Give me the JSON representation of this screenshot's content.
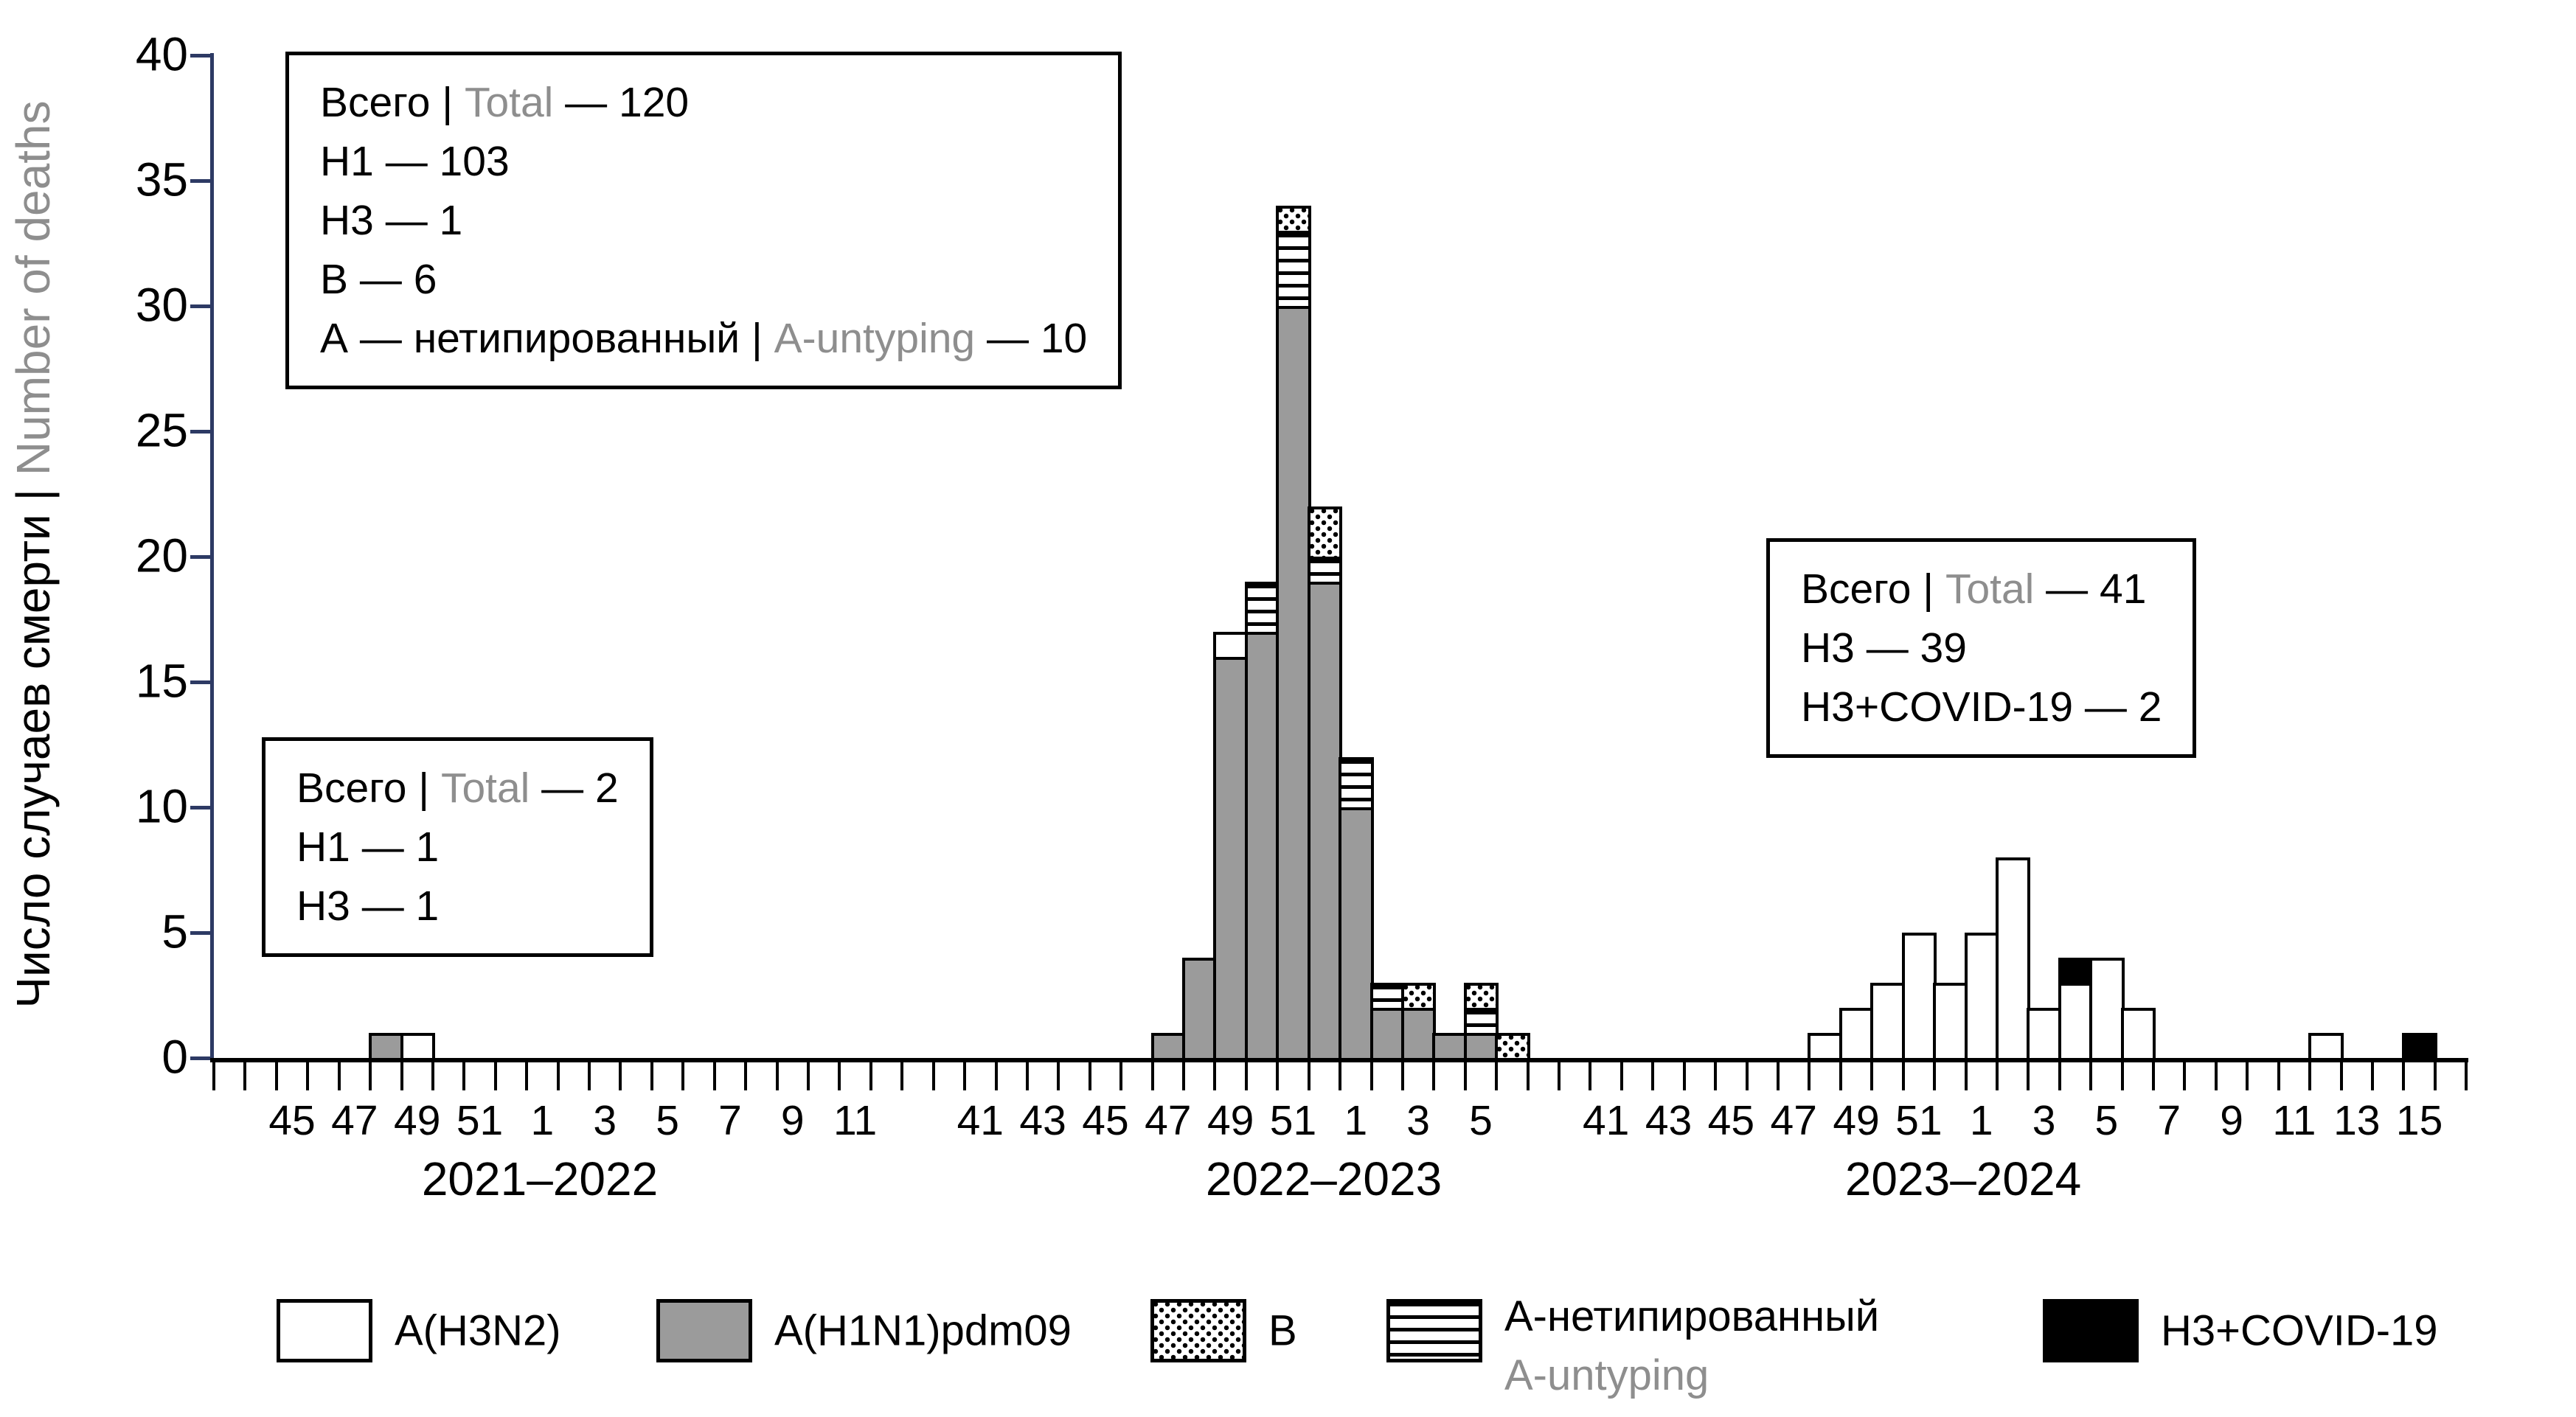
{
  "colors": {
    "axis_y": "#2d3a64",
    "axis_x": "#000000",
    "h1n1_fill": "#9b9b9b",
    "gray_text": "#8e8e8e"
  },
  "chart_data": {
    "type": "bar",
    "title": "",
    "ylabel_black": "Число случаев смерти | ",
    "ylabel_gray": "Number of deaths",
    "ylim": [
      0,
      40
    ],
    "yticks": [
      0,
      5,
      10,
      15,
      20,
      25,
      30,
      35,
      40
    ],
    "grid": "off",
    "legend_position": "bottom",
    "stack_order": [
      "h1n1",
      "h3n2",
      "untyped",
      "b",
      "covid"
    ],
    "seasons": [
      {
        "label": "2021–2022",
        "weeks": [
          43,
          44,
          45,
          46,
          47,
          48,
          49,
          50,
          51,
          52,
          1,
          2,
          3,
          4,
          5,
          6,
          7,
          8,
          9,
          10,
          11,
          12
        ],
        "labeled_weeks": [
          45,
          47,
          49,
          51,
          1,
          3,
          5,
          7,
          9,
          11
        ],
        "bars": [
          {
            "week": 48,
            "segments": {
              "h1n1": 1
            }
          },
          {
            "week": 49,
            "segments": {
              "h3n2": 1
            }
          }
        ]
      },
      {
        "label": "2022–2023",
        "weeks": [
          39,
          40,
          41,
          42,
          43,
          44,
          45,
          46,
          47,
          48,
          49,
          50,
          51,
          52,
          1,
          2,
          3,
          4,
          5,
          6
        ],
        "labeled_weeks": [
          41,
          43,
          45,
          47,
          49,
          51,
          1,
          3,
          5
        ],
        "bars": [
          {
            "week": 47,
            "segments": {
              "h1n1": 1
            }
          },
          {
            "week": 48,
            "segments": {
              "h1n1": 4
            }
          },
          {
            "week": 49,
            "segments": {
              "h1n1": 16,
              "h3n2": 1
            }
          },
          {
            "week": 50,
            "segments": {
              "h1n1": 17,
              "untyped": 2
            }
          },
          {
            "week": 51,
            "segments": {
              "h1n1": 30,
              "untyped": 3,
              "b": 1
            }
          },
          {
            "week": 52,
            "segments": {
              "h1n1": 19,
              "untyped": 1,
              "b": 2
            }
          },
          {
            "week": 1,
            "segments": {
              "h1n1": 10,
              "untyped": 2
            }
          },
          {
            "week": 2,
            "segments": {
              "h1n1": 2,
              "untyped": 1
            }
          },
          {
            "week": 3,
            "segments": {
              "h1n1": 2,
              "b": 1
            }
          },
          {
            "week": 4,
            "segments": {
              "h1n1": 1
            }
          },
          {
            "week": 5,
            "segments": {
              "h1n1": 1,
              "untyped": 1,
              "b": 1
            }
          },
          {
            "week": 6,
            "segments": {
              "b": 1
            }
          }
        ]
      },
      {
        "label": "2023–2024",
        "weeks": [
          39,
          40,
          41,
          42,
          43,
          44,
          45,
          46,
          47,
          48,
          49,
          50,
          51,
          52,
          1,
          2,
          3,
          4,
          5,
          6,
          7,
          8,
          9,
          10,
          11,
          12,
          13,
          14,
          15,
          16
        ],
        "labeled_weeks": [
          41,
          43,
          45,
          47,
          49,
          51,
          1,
          3,
          5,
          7,
          9,
          11,
          13,
          15
        ],
        "bars": [
          {
            "week": 48,
            "segments": {
              "h3n2": 1
            }
          },
          {
            "week": 49,
            "segments": {
              "h3n2": 2
            }
          },
          {
            "week": 50,
            "segments": {
              "h3n2": 3
            }
          },
          {
            "week": 51,
            "segments": {
              "h3n2": 5
            }
          },
          {
            "week": 52,
            "segments": {
              "h3n2": 3
            }
          },
          {
            "week": 1,
            "segments": {
              "h3n2": 5
            }
          },
          {
            "week": 2,
            "segments": {
              "h3n2": 8
            }
          },
          {
            "week": 3,
            "segments": {
              "h3n2": 2
            }
          },
          {
            "week": 4,
            "segments": {
              "h3n2": 3,
              "covid": 1
            }
          },
          {
            "week": 5,
            "segments": {
              "h3n2": 4
            }
          },
          {
            "week": 6,
            "segments": {
              "h3n2": 2
            }
          },
          {
            "week": 12,
            "segments": {
              "h3n2": 1
            }
          },
          {
            "week": 15,
            "segments": {
              "covid": 1
            }
          }
        ]
      }
    ],
    "annotations": [
      {
        "name": "summary-2022-2023",
        "lines": [
          [
            {
              "t": "Всего | "
            },
            {
              "t": "Total",
              "gray": true
            },
            {
              "t": " — 120"
            }
          ],
          [
            {
              "t": "H1 — 103"
            }
          ],
          [
            {
              "t": "H3 — 1"
            }
          ],
          [
            {
              "t": "B — 6"
            }
          ],
          [
            {
              "t": "А — нетипированный | "
            },
            {
              "t": "A-untyping",
              "gray": true
            },
            {
              "t": " — 10"
            }
          ]
        ]
      },
      {
        "name": "summary-2021-2022",
        "lines": [
          [
            {
              "t": "Всего | "
            },
            {
              "t": "Total",
              "gray": true
            },
            {
              "t": " — 2"
            }
          ],
          [
            {
              "t": "H1 — 1"
            }
          ],
          [
            {
              "t": "H3 — 1"
            }
          ]
        ]
      },
      {
        "name": "summary-2023-2024",
        "lines": [
          [
            {
              "t": "Всего | "
            },
            {
              "t": "Total",
              "gray": true
            },
            {
              "t": " — 41"
            }
          ],
          [
            {
              "t": "H3 — 39"
            }
          ],
          [
            {
              "t": "H3+COVID-19 — 2"
            }
          ]
        ]
      }
    ],
    "legend": {
      "items": [
        {
          "key": "h3n2",
          "label": "A(H3N2)"
        },
        {
          "key": "h1n1",
          "label": "A(H1N1)pdm09"
        },
        {
          "key": "b",
          "label": "B"
        },
        {
          "key": "untyped",
          "label": "А-нетипированный",
          "label2": "A-untyping"
        },
        {
          "key": "covid",
          "label": "H3+COVID-19"
        }
      ]
    }
  }
}
